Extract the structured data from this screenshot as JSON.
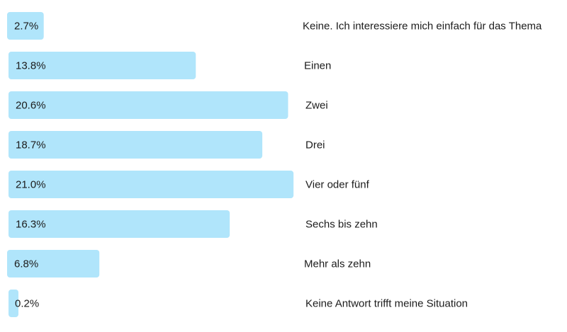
{
  "chart_data": {
    "type": "bar",
    "orientation": "horizontal",
    "categories": [
      "Keine. Ich interessiere mich einfach für das Thema",
      "Einen",
      "Zwei",
      "Drei",
      "Vier oder fünf",
      "Sechs bis zehn",
      "Mehr als zehn",
      "Keine Antwort trifft meine Situation"
    ],
    "values": [
      2.7,
      13.8,
      20.6,
      18.7,
      21.0,
      16.3,
      6.8,
      0.2
    ],
    "value_labels": [
      "2.7%",
      "13.8%",
      "20.6%",
      "18.7%",
      "21.0%",
      "16.3%",
      "6.8%",
      "0.2%"
    ],
    "title": "",
    "xlabel": "",
    "ylabel": "",
    "grid": false,
    "bar_color": "#b0e5fb",
    "text_color": "#1c1c1c"
  }
}
